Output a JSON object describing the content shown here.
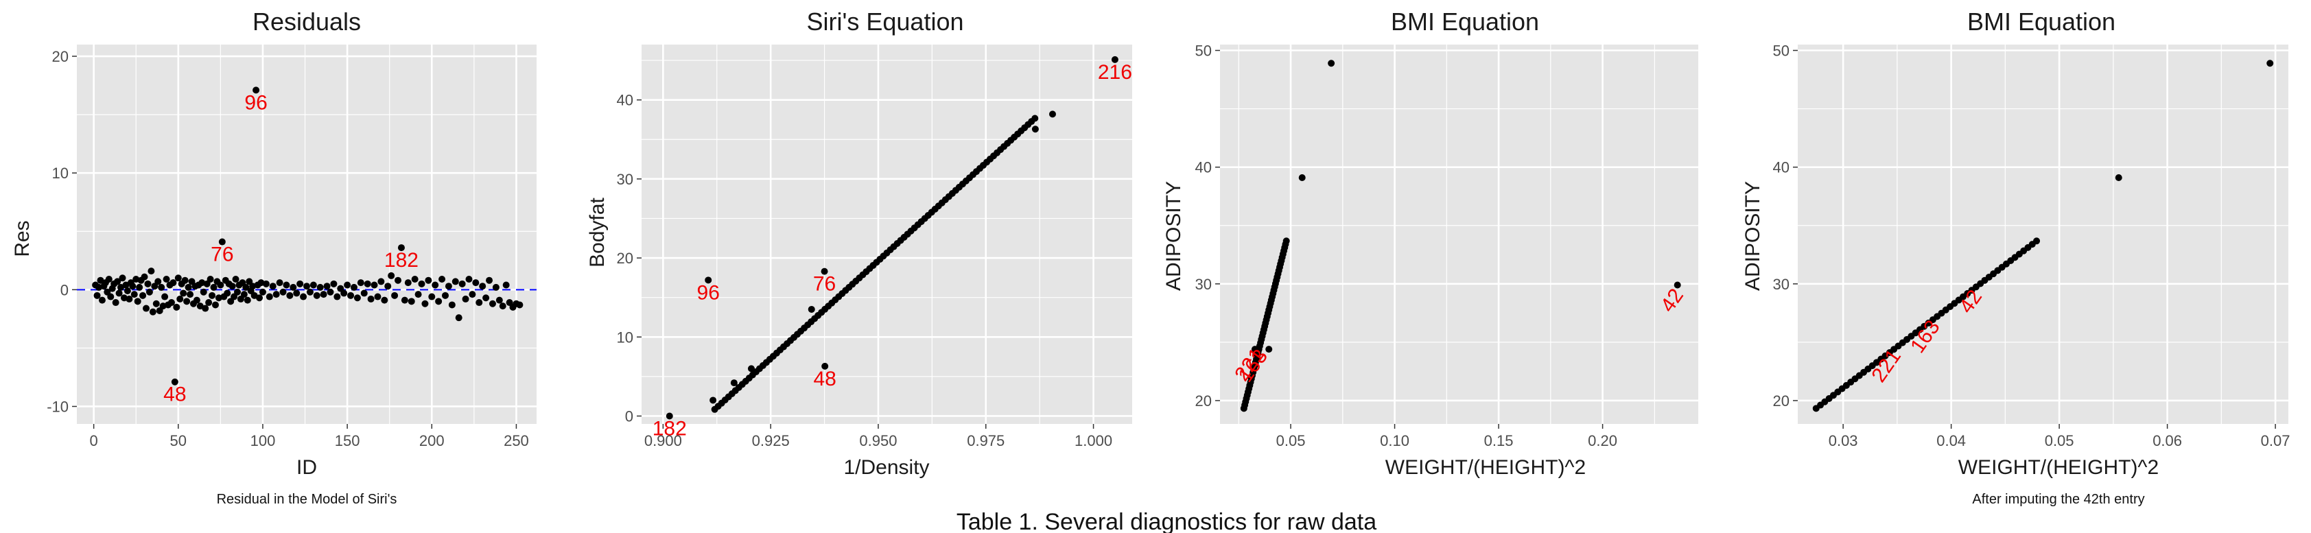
{
  "caption": "Table 1. Several diagnostics for raw data",
  "colors": {
    "panel": "#e5e5e5",
    "grid": "#ffffff",
    "point": "#000000",
    "label": "#f00000",
    "ref_line": "#0000ff"
  },
  "chart_data": [
    {
      "type": "scatter",
      "title": "Residuals",
      "xlabel": "ID",
      "ylabel": "Res",
      "caption": "Residual in the Model of Siri's",
      "xlim": [
        -10,
        262
      ],
      "ylim": [
        -11.5,
        21
      ],
      "xticks": [
        0,
        50,
        100,
        150,
        200,
        250
      ],
      "yticks": [
        -10,
        0,
        10,
        20
      ],
      "reference_line_y": 0,
      "points": [
        [
          1,
          0.4
        ],
        [
          2,
          -0.5
        ],
        [
          3,
          0.2
        ],
        [
          4,
          0.8
        ],
        [
          5,
          -0.9
        ],
        [
          6,
          0.3
        ],
        [
          7,
          0.6
        ],
        [
          8,
          -0.2
        ],
        [
          9,
          0.9
        ],
        [
          10,
          -0.6
        ],
        [
          11,
          0.1
        ],
        [
          12,
          0.5
        ],
        [
          13,
          -1.1
        ],
        [
          14,
          0.7
        ],
        [
          15,
          -0.3
        ],
        [
          16,
          0.2
        ],
        [
          17,
          1.0
        ],
        [
          18,
          -0.7
        ],
        [
          19,
          0.4
        ],
        [
          20,
          -0.1
        ],
        [
          21,
          -0.8
        ],
        [
          22,
          0.6
        ],
        [
          23,
          0.3
        ],
        [
          24,
          -0.4
        ],
        [
          25,
          0.9
        ],
        [
          26,
          -1.0
        ],
        [
          27,
          0.2
        ],
        [
          28,
          0.8
        ],
        [
          29,
          -0.5
        ],
        [
          30,
          1.1
        ],
        [
          31,
          -1.6
        ],
        [
          32,
          0.5
        ],
        [
          33,
          -0.2
        ],
        [
          34,
          1.6
        ],
        [
          35,
          -1.9
        ],
        [
          36,
          0.3
        ],
        [
          37,
          -1.2
        ],
        [
          38,
          0.7
        ],
        [
          39,
          -1.8
        ],
        [
          40,
          0.2
        ],
        [
          41,
          -1.4
        ],
        [
          42,
          -0.6
        ],
        [
          43,
          0.9
        ],
        [
          44,
          -1.3
        ],
        [
          45,
          0.4
        ],
        [
          46,
          -1.1
        ],
        [
          47,
          0.6
        ],
        [
          48,
          -7.9
        ],
        [
          49,
          -1.5
        ],
        [
          50,
          1.0
        ],
        [
          51,
          -0.8
        ],
        [
          52,
          0.5
        ],
        [
          53,
          -0.3
        ],
        [
          54,
          0.8
        ],
        [
          55,
          -1.0
        ],
        [
          56,
          0.2
        ],
        [
          57,
          -0.4
        ],
        [
          58,
          0.7
        ],
        [
          59,
          -1.2
        ],
        [
          60,
          0.3
        ],
        [
          61,
          -0.9
        ],
        [
          62,
          0.4
        ],
        [
          63,
          -1.4
        ],
        [
          64,
          0.6
        ],
        [
          65,
          -0.2
        ],
        [
          66,
          -1.6
        ],
        [
          67,
          0.5
        ],
        [
          68,
          -1.1
        ],
        [
          69,
          0.9
        ],
        [
          70,
          -0.5
        ],
        [
          71,
          0.2
        ],
        [
          72,
          -1.3
        ],
        [
          73,
          0.7
        ],
        [
          74,
          -0.7
        ],
        [
          75,
          0.4
        ],
        [
          76,
          4.1
        ],
        [
          77,
          -0.6
        ],
        [
          78,
          0.8
        ],
        [
          79,
          -0.3
        ],
        [
          80,
          0.5
        ],
        [
          81,
          -1.0
        ],
        [
          82,
          0.3
        ],
        [
          83,
          -0.6
        ],
        [
          84,
          0.9
        ],
        [
          85,
          -0.2
        ],
        [
          86,
          0.4
        ],
        [
          87,
          -0.8
        ],
        [
          88,
          0.6
        ],
        [
          89,
          -0.4
        ],
        [
          90,
          0.2
        ],
        [
          91,
          -0.9
        ],
        [
          92,
          0.7
        ],
        [
          93,
          -0.1
        ],
        [
          94,
          0.3
        ],
        [
          95,
          -0.5
        ],
        [
          96,
          17.1
        ],
        [
          97,
          0.4
        ],
        [
          98,
          -0.7
        ],
        [
          99,
          0.6
        ],
        [
          100,
          -0.2
        ],
        [
          102,
          0.5
        ],
        [
          104,
          -0.6
        ],
        [
          106,
          0.3
        ],
        [
          108,
          -0.4
        ],
        [
          110,
          0.6
        ],
        [
          112,
          -0.2
        ],
        [
          114,
          0.4
        ],
        [
          116,
          -0.5
        ],
        [
          118,
          0.2
        ],
        [
          120,
          -0.3
        ],
        [
          122,
          0.5
        ],
        [
          124,
          -0.6
        ],
        [
          126,
          0.3
        ],
        [
          128,
          -0.2
        ],
        [
          130,
          0.4
        ],
        [
          132,
          -0.5
        ],
        [
          134,
          0.2
        ],
        [
          136,
          -0.4
        ],
        [
          138,
          0.3
        ],
        [
          140,
          -0.2
        ],
        [
          142,
          0.5
        ],
        [
          144,
          -0.6
        ],
        [
          146,
          0.1
        ],
        [
          148,
          -0.3
        ],
        [
          150,
          0.4
        ],
        [
          152,
          -0.5
        ],
        [
          154,
          0.2
        ],
        [
          156,
          -0.7
        ],
        [
          158,
          0.6
        ],
        [
          160,
          -0.3
        ],
        [
          162,
          0.5
        ],
        [
          164,
          -0.8
        ],
        [
          166,
          0.4
        ],
        [
          168,
          -0.6
        ],
        [
          170,
          0.7
        ],
        [
          172,
          -0.9
        ],
        [
          174,
          0.3
        ],
        [
          176,
          1.2
        ],
        [
          178,
          -0.5
        ],
        [
          180,
          0.8
        ],
        [
          182,
          3.6
        ],
        [
          184,
          -0.9
        ],
        [
          186,
          0.6
        ],
        [
          188,
          -1.0
        ],
        [
          190,
          0.9
        ],
        [
          192,
          -0.4
        ],
        [
          194,
          0.5
        ],
        [
          196,
          -1.2
        ],
        [
          198,
          0.8
        ],
        [
          200,
          -0.6
        ],
        [
          202,
          0.4
        ],
        [
          204,
          -1.0
        ],
        [
          206,
          0.9
        ],
        [
          208,
          -0.5
        ],
        [
          210,
          0.3
        ],
        [
          212,
          -1.3
        ],
        [
          214,
          0.7
        ],
        [
          216,
          -2.4
        ],
        [
          218,
          0.5
        ],
        [
          220,
          -0.8
        ],
        [
          222,
          0.9
        ],
        [
          224,
          -0.4
        ],
        [
          226,
          0.6
        ],
        [
          228,
          -1.1
        ],
        [
          230,
          0.3
        ],
        [
          232,
          -0.7
        ],
        [
          234,
          0.8
        ],
        [
          236,
          -1.2
        ],
        [
          238,
          0.2
        ],
        [
          240,
          -0.9
        ],
        [
          242,
          -1.4
        ],
        [
          244,
          0.4
        ],
        [
          246,
          -1.1
        ],
        [
          248,
          -1.5
        ],
        [
          250,
          -1.2
        ],
        [
          252,
          -1.3
        ]
      ],
      "labels": [
        {
          "text": "96",
          "x": 96,
          "y": 17.1,
          "dy": "below"
        },
        {
          "text": "76",
          "x": 76,
          "y": 4.1,
          "dy": "below"
        },
        {
          "text": "182",
          "x": 182,
          "y": 3.6,
          "dy": "below"
        },
        {
          "text": "48",
          "x": 48,
          "y": -7.9,
          "dy": "below"
        }
      ]
    },
    {
      "type": "scatter",
      "title": "Siri's Equation",
      "xlabel": "1/Density",
      "ylabel": "Bodyfat",
      "xlim": [
        0.895,
        1.009
      ],
      "ylim": [
        -1,
        47
      ],
      "xticks": [
        0.9,
        0.925,
        0.95,
        0.975,
        1.0
      ],
      "xtick_labels": [
        "0.900",
        "0.925",
        "0.950",
        "0.975",
        "1.000"
      ],
      "yticks": [
        0,
        10,
        20,
        30,
        40
      ],
      "trend": {
        "x0": 0.912,
        "x1": 0.987,
        "step": 0.0008,
        "slope": 495,
        "intercept": -450.6
      },
      "points": [
        [
          0.9015,
          0.0
        ],
        [
          0.9105,
          17.2
        ],
        [
          0.9116,
          2.0
        ],
        [
          0.9165,
          4.2
        ],
        [
          0.9205,
          6.0
        ],
        [
          0.9345,
          13.5
        ],
        [
          0.9375,
          18.3
        ],
        [
          0.9376,
          6.3
        ],
        [
          0.9865,
          36.3
        ],
        [
          0.9905,
          38.2
        ],
        [
          1.005,
          45.1
        ]
      ],
      "labels": [
        {
          "text": "216",
          "x": 1.005,
          "y": 45.1,
          "dy": "below"
        },
        {
          "text": "96",
          "x": 0.9105,
          "y": 17.2,
          "dy": "below"
        },
        {
          "text": "76",
          "x": 0.9375,
          "y": 18.3,
          "dy": "below"
        },
        {
          "text": "48",
          "x": 0.9376,
          "y": 6.3,
          "dy": "below"
        },
        {
          "text": "182",
          "x": 0.9015,
          "y": 0.0,
          "dy": "below"
        }
      ]
    },
    {
      "type": "scatter",
      "title": "BMI Equation",
      "xlabel": "WEIGHT/(HEIGHT)^2",
      "ylabel": "ADIPOSITY",
      "xlim": [
        0.016,
        0.246
      ],
      "ylim": [
        18,
        50.5
      ],
      "xticks": [
        0.05,
        0.1,
        0.15,
        0.2
      ],
      "xtick_labels": [
        "0.05",
        "0.10",
        "0.15",
        "0.20"
      ],
      "yticks": [
        20,
        30,
        40,
        50
      ],
      "trend": {
        "x0": 0.0275,
        "x1": 0.0482,
        "step": 0.0004,
        "slope": 703,
        "intercept": 0
      },
      "points": [
        [
          0.0555,
          39.1
        ],
        [
          0.0695,
          48.9
        ],
        [
          0.236,
          29.9
        ],
        [
          0.0328,
          24.4
        ],
        [
          0.0345,
          24.3
        ],
        [
          0.0395,
          24.4
        ]
      ],
      "labels": [
        {
          "text": "42",
          "x": 0.236,
          "y": 29.9,
          "dy": "below",
          "rotate": -55
        },
        {
          "text": "221",
          "x": 0.0328,
          "y": 24.4,
          "dy": "below",
          "rotate": -55
        },
        {
          "text": "163",
          "x": 0.0345,
          "y": 24.3,
          "dy": "below",
          "rotate": -55
        }
      ]
    },
    {
      "type": "scatter",
      "title": "BMI Equation",
      "xlabel": "WEIGHT/(HEIGHT)^2",
      "ylabel": "ADIPOSITY",
      "caption": "After imputing the 42th entry",
      "xlim": [
        0.0258,
        0.0712
      ],
      "ylim": [
        18,
        50.5
      ],
      "xticks": [
        0.03,
        0.04,
        0.05,
        0.06,
        0.07
      ],
      "xtick_labels": [
        "0.03",
        "0.04",
        "0.05",
        "0.06",
        "0.07"
      ],
      "yticks": [
        20,
        30,
        40,
        50
      ],
      "trend": {
        "x0": 0.0275,
        "x1": 0.0482,
        "step": 0.0004,
        "slope": 703,
        "intercept": 0
      },
      "points": [
        [
          0.0555,
          39.1
        ],
        [
          0.0695,
          48.9
        ]
      ],
      "labels": [
        {
          "text": "221",
          "x": 0.0345,
          "y": 24.3,
          "dy": "below",
          "rotate": -55
        },
        {
          "text": "163",
          "x": 0.0381,
          "y": 26.8,
          "dy": "below",
          "rotate": -55
        },
        {
          "text": "42",
          "x": 0.0423,
          "y": 29.8,
          "dy": "below",
          "rotate": -55
        }
      ]
    }
  ]
}
